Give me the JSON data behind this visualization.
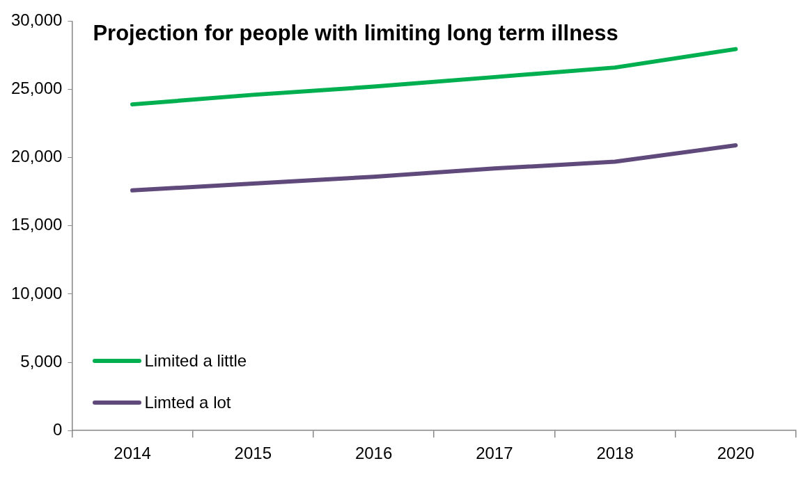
{
  "chart_data": {
    "type": "line",
    "title": "Projection for people with limiting long term illness",
    "categories": [
      "2014",
      "2015",
      "2016",
      "2017",
      "2018",
      "2020"
    ],
    "series": [
      {
        "name": "Limited a little",
        "color": "#00b050",
        "values": [
          23900,
          24600,
          25200,
          25900,
          26600,
          27950
        ]
      },
      {
        "name": "Limted a lot",
        "color": "#604a7b",
        "values": [
          17600,
          18100,
          18600,
          19200,
          19700,
          20900
        ]
      }
    ],
    "ylim": [
      0,
      30000
    ],
    "yticks": [
      {
        "value": 0,
        "label": "0"
      },
      {
        "value": 5000,
        "label": "5,000"
      },
      {
        "value": 10000,
        "label": "10,000"
      },
      {
        "value": 15000,
        "label": "15,000"
      },
      {
        "value": 20000,
        "label": "20,000"
      },
      {
        "value": 25000,
        "label": "25,000"
      },
      {
        "value": 30000,
        "label": "30,000"
      }
    ],
    "grid": false,
    "legend": "bottom left",
    "marker": "none",
    "line_style": "solid"
  }
}
